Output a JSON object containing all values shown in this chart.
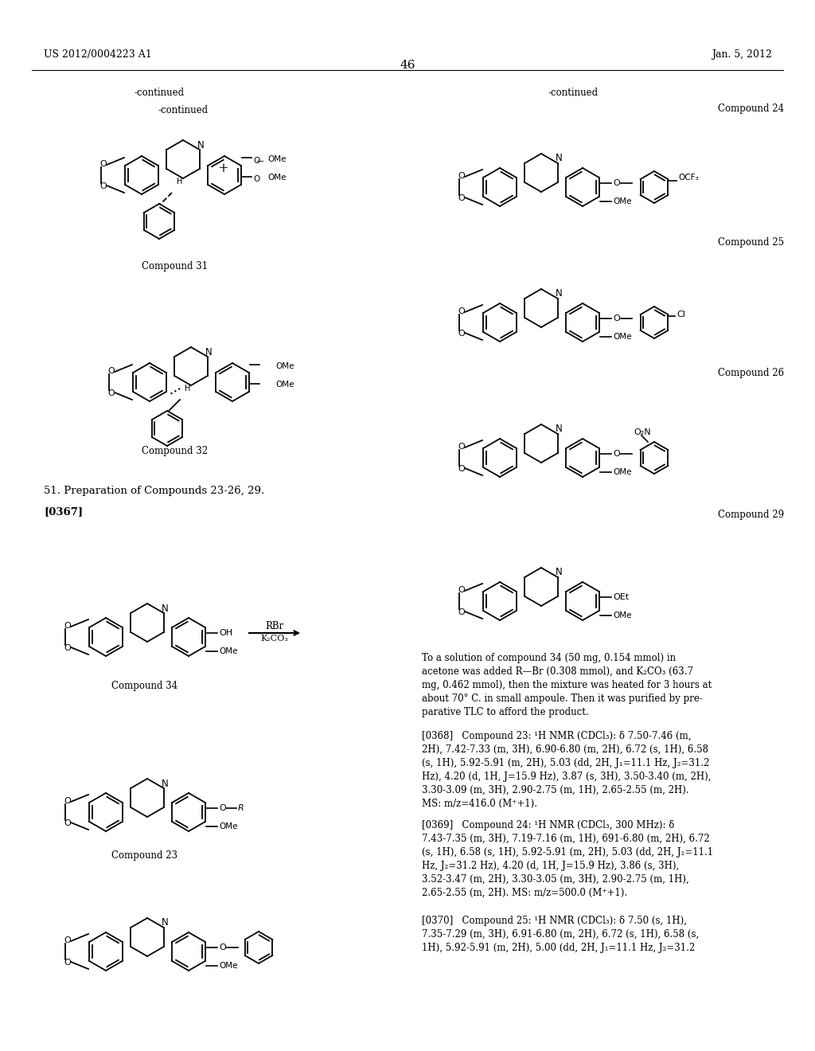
{
  "page_number": "46",
  "header_left": "US 2012/0004223 A1",
  "header_right": "Jan. 5, 2012",
  "background_color": "#ffffff",
  "text_color": "#000000",
  "figsize": [
    10.24,
    13.2
  ],
  "dpi": 100,
  "left_column": {
    "continued_label": "-continued",
    "compound31_label": "Compound 31",
    "compound32_label": "Compound 32",
    "section_title": "51. Preparation of Compounds 23-26, 29.",
    "paragraph_label": "[0367]",
    "compound34_label": "Compound 34",
    "compound23_label": "Compound 23",
    "reaction_label1": "RBr",
    "reaction_label2": "K₂CO₃",
    "oh_label": "OH",
    "r_label": "R",
    "plus_sign": "+"
  },
  "right_column": {
    "continued_label": "-continued",
    "compound24_label": "Compound 24",
    "compound25_label": "Compound 25",
    "compound26_label": "Compound 26",
    "compound29_label": "Compound 29",
    "cf3_label": "CF₃",
    "cl_label": "Cl",
    "o2n_label": "O₂N",
    "ome_label": "OMe",
    "reaction_text": "To a solution of compound 34 (50 mg, 0.154 mmol) in\nacetone was added R—Br (0.308 mmol), and K₂CO₃ (63.7\nmg, 0.462 mmol), then the mixture was heated for 3 hours at\nabout 70° C. in small ampoule. Then it was purified by pre-\nparative TLC to afford the product.",
    "nmr_368": "[0368]   Compound 23: ¹H NMR (CDCl₃): δ 7.50-7.46 (m,\n2H), 7.42-7.33 (m, 3H), 6.90-6.80 (m, 2H), 6.72 (s, 1H), 6.58\n(s, 1H), 5.92-5.91 (m, 2H), 5.03 (dd, 2H, J₁=11.1 Hz, J₂=31.2\nHz), 4.20 (d, 1H, J=15.9 Hz), 3.87 (s, 3H), 3.50-3.40 (m, 2H),\n3.30-3.09 (m, 3H), 2.90-2.75 (m, 1H), 2.65-2.55 (m, 2H).\nMS: m/z=416.0 (M⁺+1).",
    "nmr_369": "[0369]   Compound 24: ¹H NMR (CDCl₃, 300 MHz): δ\n7.43-7.35 (m, 3H), 7.19-7.16 (m, 1H), 691-6.80 (m, 2H), 6.72\n(s, 1H), 6.58 (s, 1H), 5.92-5.91 (m, 2H), 5.03 (dd, 2H, J₁=11.1\nHz, J₂=31.2 Hz), 4.20 (d, 1H, J=15.9 Hz), 3.86 (s, 3H),\n3.52-3.47 (m, 2H), 3.30-3.05 (m, 3H), 2.90-2.75 (m, 1H),\n2.65-2.55 (m, 2H). MS: m/z=500.0 (M⁺+1).",
    "nmr_370": "[0370]   Compound 25: ¹H NMR (CDCl₃): δ 7.50 (s, 1H),\n7.35-7.29 (m, 3H), 6.91-6.80 (m, 2H), 6.72 (s, 1H), 6.58 (s,\n1H), 5.92-5.91 (m, 2H), 5.00 (dd, 2H, J₁=11.1 Hz, J₂=31.2"
  }
}
